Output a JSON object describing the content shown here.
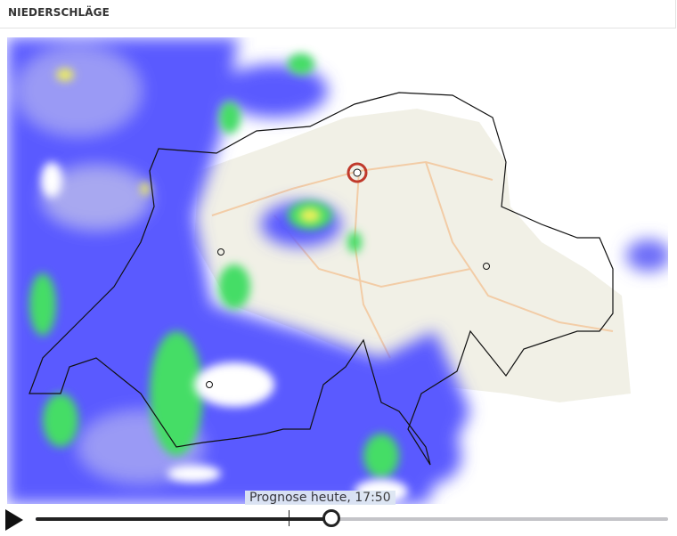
{
  "header": {
    "title": "NIEDERSCHLÄGE"
  },
  "map": {
    "time_label": "Prognose heute, 17:50",
    "colors": {
      "light": "#9a9af5",
      "medium": "#5a5aff",
      "heavy": "#44dd66",
      "intense": "#f2f25a",
      "border": "#111111"
    }
  },
  "player": {
    "play_icon": "play-icon",
    "progress": 0.466,
    "now_marker": 0.4
  }
}
